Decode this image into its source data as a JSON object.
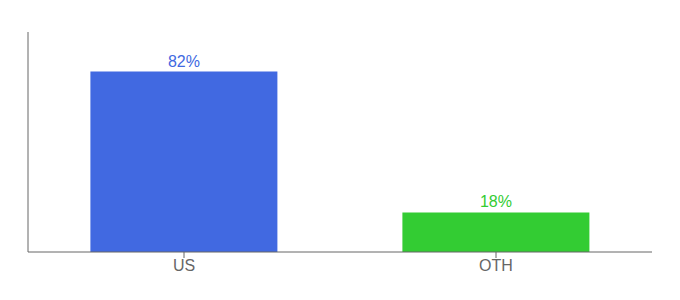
{
  "chart_data": {
    "type": "bar",
    "categories": [
      "US",
      "OTH"
    ],
    "values": [
      82,
      18
    ],
    "value_labels": [
      "82%",
      "18%"
    ],
    "data_labels": true,
    "colors": [
      "#4169e1",
      "#33cc33"
    ],
    "ylim": [
      0,
      100
    ],
    "tick_labels": "x"
  }
}
